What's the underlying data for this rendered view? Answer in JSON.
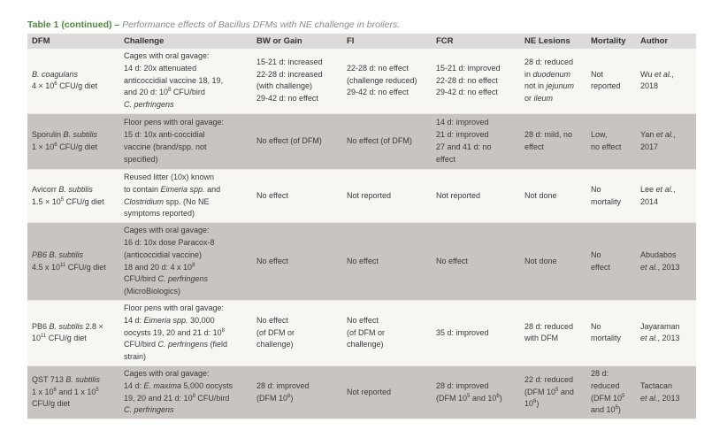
{
  "title": {
    "lead": "Table 1 (continued) – ",
    "caption": "Performance effects of Bacillus DFMs with NE challenge in broilers."
  },
  "colors": {
    "title_green": "#4f8a3f",
    "header_bg": "#dcdbd9",
    "row_light": "#f7f6f3",
    "row_dark": "#c9c4bf"
  },
  "columns": [
    "DFM",
    "Challenge",
    "BW or Gain",
    "FI",
    "FCR",
    "NE Lesions",
    "Mortality",
    "Author"
  ],
  "rows": [
    {
      "shade": "light",
      "cells": [
        [
          [
            [
              "B. coagulans",
              "i"
            ]
          ],
          [
            [
              "4 × 10",
              ""
            ],
            [
              "6",
              "sup"
            ],
            [
              " CFU/g diet",
              ""
            ]
          ]
        ],
        [
          [
            [
              "Cages with oral gavage:",
              ""
            ]
          ],
          [
            [
              "14 d: 20x attenuated",
              ""
            ]
          ],
          [
            [
              "anticoccidial vaccine 18, 19,",
              ""
            ]
          ],
          [
            [
              "and 20 d: 10",
              ""
            ],
            [
              "8",
              "sup"
            ],
            [
              " CFU/bird",
              ""
            ]
          ],
          [
            [
              "C. perfringens",
              "i"
            ]
          ]
        ],
        [
          [
            [
              "15-21 d: increased",
              ""
            ]
          ],
          [
            [
              "22-28 d: increased",
              ""
            ]
          ],
          [
            [
              "(with challenge)",
              ""
            ]
          ],
          [
            [
              "29-42 d: no effect",
              ""
            ]
          ]
        ],
        [
          [
            [
              "22-28 d: no effect",
              ""
            ]
          ],
          [
            [
              "(challenge reduced)",
              ""
            ]
          ],
          [
            [
              "29-42 d: no effect",
              ""
            ]
          ]
        ],
        [
          [
            [
              "15-21 d: improved",
              ""
            ]
          ],
          [
            [
              "22-28 d: no effect",
              ""
            ]
          ],
          [
            [
              "29-42 d: no effect",
              ""
            ]
          ]
        ],
        [
          [
            [
              "28 d: reduced",
              ""
            ]
          ],
          [
            [
              "in ",
              ""
            ],
            [
              "duodenum",
              "i"
            ]
          ],
          [
            [
              "not in ",
              ""
            ],
            [
              "jejunum",
              "i"
            ]
          ],
          [
            [
              "or ",
              ""
            ],
            [
              "ileum",
              "i"
            ]
          ]
        ],
        [
          [
            [
              "Not",
              ""
            ]
          ],
          [
            [
              "reported",
              ""
            ]
          ]
        ],
        [
          [
            [
              "Wu ",
              ""
            ],
            [
              "et al.",
              "i"
            ],
            [
              ",",
              ""
            ]
          ],
          [
            [
              "2018",
              ""
            ]
          ]
        ]
      ]
    },
    {
      "shade": "dark",
      "cells": [
        [
          [
            [
              "Sporulin ",
              ""
            ],
            [
              "B. subtilis",
              "i"
            ]
          ],
          [
            [
              "1 × 10",
              ""
            ],
            [
              "6",
              "sup"
            ],
            [
              " CFU/g diet",
              ""
            ]
          ]
        ],
        [
          [
            [
              "Floor pens with oral gavage:",
              ""
            ]
          ],
          [
            [
              "15 d: 10x anti-coccidial",
              ""
            ]
          ],
          [
            [
              "vaccine (brand/spp. not",
              ""
            ]
          ],
          [
            [
              "specified)",
              ""
            ]
          ]
        ],
        [
          [
            [
              "No effect (of DFM)",
              ""
            ]
          ]
        ],
        [
          [
            [
              "No effect (of DFM)",
              ""
            ]
          ]
        ],
        [
          [
            [
              "14 d: improved",
              ""
            ]
          ],
          [
            [
              "21 d: improved",
              ""
            ]
          ],
          [
            [
              "27 and 41 d: no",
              ""
            ]
          ],
          [
            [
              "effect",
              ""
            ]
          ]
        ],
        [
          [
            [
              "28 d: mild, no",
              ""
            ]
          ],
          [
            [
              "effect",
              ""
            ]
          ]
        ],
        [
          [
            [
              "Low,",
              ""
            ]
          ],
          [
            [
              "no effect",
              ""
            ]
          ]
        ],
        [
          [
            [
              "Yan ",
              ""
            ],
            [
              "et al.",
              "i"
            ],
            [
              ",",
              ""
            ]
          ],
          [
            [
              "2017",
              ""
            ]
          ]
        ]
      ]
    },
    {
      "shade": "light",
      "cells": [
        [
          [
            [
              "Avicorr ",
              ""
            ],
            [
              "B. subtilis",
              "i"
            ]
          ],
          [
            [
              "1.5 × 10",
              ""
            ],
            [
              "5",
              "sup"
            ],
            [
              " CFU/g diet",
              ""
            ]
          ]
        ],
        [
          [
            [
              "Reused litter (10x) known",
              ""
            ]
          ],
          [
            [
              "to contain ",
              ""
            ],
            [
              "Eimeria spp.",
              "i"
            ],
            [
              " and",
              ""
            ]
          ],
          [
            [
              "Clostridium",
              "i"
            ],
            [
              " spp. (No NE",
              ""
            ]
          ],
          [
            [
              "symptoms reported)",
              ""
            ]
          ]
        ],
        [
          [
            [
              "No effect",
              ""
            ]
          ]
        ],
        [
          [
            [
              "Not reported",
              ""
            ]
          ]
        ],
        [
          [
            [
              "Not reported",
              ""
            ]
          ]
        ],
        [
          [
            [
              "Not done",
              ""
            ]
          ]
        ],
        [
          [
            [
              "No",
              ""
            ]
          ],
          [
            [
              "mortality",
              ""
            ]
          ]
        ],
        [
          [
            [
              "Lee ",
              ""
            ],
            [
              "et al.",
              "i"
            ],
            [
              ",",
              ""
            ]
          ],
          [
            [
              "2014",
              ""
            ]
          ]
        ]
      ]
    },
    {
      "shade": "dark",
      "cells": [
        [
          [
            [
              "PB6 B. subtilis",
              "i"
            ]
          ],
          [
            [
              "4.5 x 10",
              ""
            ],
            [
              "11",
              "sup"
            ],
            [
              " CFU/g diet",
              ""
            ]
          ]
        ],
        [
          [
            [
              "Cages with oral gavage:",
              ""
            ]
          ],
          [
            [
              "16 d: 10x dose Paracox-8",
              ""
            ]
          ],
          [
            [
              "(anticoccidial vaccine)",
              ""
            ]
          ],
          [
            [
              "18 and 20 d: 4 x 10",
              ""
            ],
            [
              "8",
              "sup"
            ]
          ],
          [
            [
              "CFU/bird ",
              ""
            ],
            [
              "C. perfringens",
              "i"
            ]
          ],
          [
            [
              "(MicroBiologics)",
              ""
            ]
          ]
        ],
        [
          [
            [
              "No effect",
              ""
            ]
          ]
        ],
        [
          [
            [
              "No effect",
              ""
            ]
          ]
        ],
        [
          [
            [
              "No effect",
              ""
            ]
          ]
        ],
        [
          [
            [
              "Not done",
              ""
            ]
          ]
        ],
        [
          [
            [
              "No",
              ""
            ]
          ],
          [
            [
              "effect",
              ""
            ]
          ]
        ],
        [
          [
            [
              "Abudabos",
              ""
            ]
          ],
          [
            [
              "et al.",
              "i"
            ],
            [
              ", 2013",
              ""
            ]
          ]
        ]
      ]
    },
    {
      "shade": "light",
      "cells": [
        [
          [
            [
              "PB6 ",
              ""
            ],
            [
              "B. subtilis",
              "i"
            ],
            [
              " 2.8 ×",
              ""
            ]
          ],
          [
            [
              "10",
              ""
            ],
            [
              "11",
              "sup"
            ],
            [
              " CFU/g diet",
              ""
            ]
          ]
        ],
        [
          [
            [
              "Floor pens with oral gavage:",
              ""
            ]
          ],
          [
            [
              "14 d: ",
              ""
            ],
            [
              "Eimeria spp.",
              "i"
            ],
            [
              " 30,000",
              ""
            ]
          ],
          [
            [
              "oocysts 19, 20 and 21 d: 10",
              ""
            ],
            [
              "8",
              "sup"
            ]
          ],
          [
            [
              "CFU/bird ",
              ""
            ],
            [
              "C. perfringens",
              "i"
            ],
            [
              " (field",
              ""
            ]
          ],
          [
            [
              "strain)",
              ""
            ]
          ]
        ],
        [
          [
            [
              "No effect",
              ""
            ]
          ],
          [
            [
              "(of DFM or",
              ""
            ]
          ],
          [
            [
              "challenge)",
              ""
            ]
          ]
        ],
        [
          [
            [
              "No effect",
              ""
            ]
          ],
          [
            [
              "(of DFM or",
              ""
            ]
          ],
          [
            [
              "challenge)",
              ""
            ]
          ]
        ],
        [
          [
            [
              "35 d: improved",
              ""
            ]
          ]
        ],
        [
          [
            [
              "28 d: reduced",
              ""
            ]
          ],
          [
            [
              "with DFM",
              ""
            ]
          ]
        ],
        [
          [
            [
              "No",
              ""
            ]
          ],
          [
            [
              "mortality",
              ""
            ]
          ]
        ],
        [
          [
            [
              "Jayaraman",
              ""
            ]
          ],
          [
            [
              "et al.",
              "i"
            ],
            [
              ", 2013",
              ""
            ]
          ]
        ]
      ]
    },
    {
      "shade": "dark",
      "cells": [
        [
          [
            [
              "QST 713 ",
              ""
            ],
            [
              "B. subtilis",
              "i"
            ]
          ],
          [
            [
              "1 x 10",
              ""
            ],
            [
              "6",
              "sup"
            ],
            [
              " and 1 x 10",
              ""
            ],
            [
              "5",
              "sup"
            ]
          ],
          [
            [
              "CFU/g diet",
              ""
            ]
          ]
        ],
        [
          [
            [
              "Cages with oral gavage:",
              ""
            ]
          ],
          [
            [
              "14 d: ",
              ""
            ],
            [
              "E. maxima",
              "i"
            ],
            [
              " 5,000 oocysts",
              ""
            ]
          ],
          [
            [
              "19, 20 and 21 d: 10",
              ""
            ],
            [
              "8",
              "sup"
            ],
            [
              " CFU/bird",
              ""
            ]
          ],
          [
            [
              "C. perfringens",
              "i"
            ]
          ]
        ],
        [
          [
            [
              "28 d: improved",
              ""
            ]
          ],
          [
            [
              "(DFM 10",
              ""
            ],
            [
              "6",
              "sup"
            ],
            [
              ")",
              ""
            ]
          ]
        ],
        [
          [
            [
              "Not reported",
              ""
            ]
          ]
        ],
        [
          [
            [
              "28 d: improved",
              ""
            ]
          ],
          [
            [
              "(DFM 10",
              ""
            ],
            [
              "5",
              "sup"
            ],
            [
              " and 10",
              ""
            ],
            [
              "6",
              "sup"
            ],
            [
              ")",
              ""
            ]
          ]
        ],
        [
          [
            [
              "22 d: reduced",
              ""
            ]
          ],
          [
            [
              "(DFM 10",
              ""
            ],
            [
              "5",
              "sup"
            ],
            [
              " and",
              ""
            ]
          ],
          [
            [
              "10",
              ""
            ],
            [
              "6",
              "sup"
            ],
            [
              ")",
              ""
            ]
          ]
        ],
        [
          [
            [
              "28 d:",
              ""
            ]
          ],
          [
            [
              "reduced",
              ""
            ]
          ],
          [
            [
              "(DFM 10",
              ""
            ],
            [
              "5",
              "sup"
            ]
          ],
          [
            [
              "and 10",
              ""
            ],
            [
              "6",
              "sup"
            ],
            [
              ")",
              ""
            ]
          ]
        ],
        [
          [
            [
              "Tactacan",
              ""
            ]
          ],
          [
            [
              "et al.",
              "i"
            ],
            [
              ", 2013",
              ""
            ]
          ]
        ]
      ]
    }
  ]
}
